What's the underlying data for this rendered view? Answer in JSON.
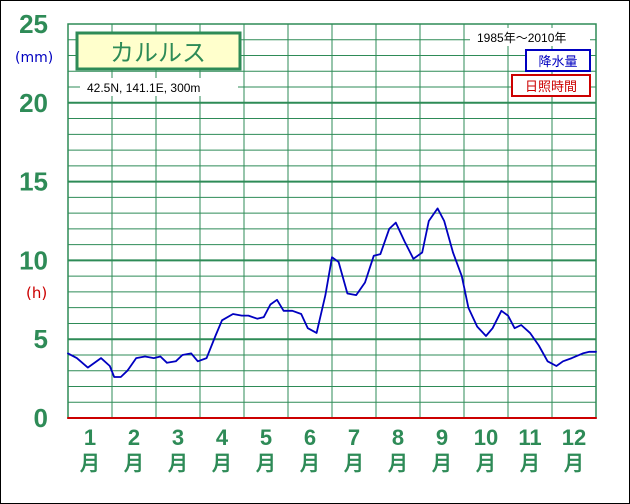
{
  "chart_data": {
    "type": "line",
    "station": "カルルス",
    "location": "42.5N,  141.1E,  300m",
    "period": "1985年〜2010年",
    "legend": [
      {
        "label": "降水量",
        "color": "#0000c0"
      },
      {
        "label": "日照時間",
        "color": "#cc0000"
      }
    ],
    "unit_precip": "(mm)",
    "unit_sun": "(h)",
    "y_ticks": [
      "0",
      "5",
      "10",
      "15",
      "20",
      "25"
    ],
    "ylim": [
      0,
      25
    ],
    "xlim": [
      1,
      13
    ],
    "months": [
      "1",
      "2",
      "3",
      "4",
      "5",
      "6",
      "7",
      "8",
      "9",
      "10",
      "11",
      "12"
    ],
    "month_suffix": "月",
    "grid": true,
    "series": [
      {
        "color": "#0000c0",
        "x": [
          1.0,
          1.2,
          1.45,
          1.75,
          1.95,
          2.05,
          2.2,
          2.35,
          2.55,
          2.75,
          2.95,
          3.1,
          3.25,
          3.45,
          3.6,
          3.8,
          3.95,
          4.15,
          4.35,
          4.5,
          4.75,
          4.95,
          5.1,
          5.3,
          5.45,
          5.6,
          5.75,
          5.9,
          6.1,
          6.3,
          6.45,
          6.65,
          6.85,
          7.0,
          7.15,
          7.35,
          7.55,
          7.75,
          7.95,
          8.1,
          8.3,
          8.45,
          8.65,
          8.85,
          9.05,
          9.2,
          9.4,
          9.55,
          9.75,
          9.95,
          10.1,
          10.3,
          10.5,
          10.65,
          10.85,
          11.0,
          11.15,
          11.3,
          11.5,
          11.7,
          11.9,
          12.1,
          12.25,
          12.45,
          12.7,
          12.85,
          13.0
        ],
        "values": [
          4.1,
          3.8,
          3.2,
          3.8,
          3.3,
          2.6,
          2.6,
          3.0,
          3.8,
          3.9,
          3.8,
          3.9,
          3.5,
          3.6,
          4.0,
          4.1,
          3.6,
          3.8,
          5.2,
          6.2,
          6.6,
          6.5,
          6.5,
          6.3,
          6.4,
          7.2,
          7.5,
          6.8,
          6.8,
          6.6,
          5.7,
          5.4,
          7.8,
          10.2,
          9.9,
          7.9,
          7.8,
          8.6,
          10.3,
          10.4,
          12.0,
          12.4,
          11.2,
          10.1,
          10.5,
          12.5,
          13.3,
          12.5,
          10.5,
          9.0,
          7.0,
          5.8,
          5.2,
          5.7,
          6.8,
          6.5,
          5.7,
          5.9,
          5.4,
          4.6,
          3.6,
          3.3,
          3.6,
          3.8,
          4.1,
          4.2,
          4.2
        ]
      },
      {
        "color": "#cc0000",
        "x": [
          1.0,
          13.0
        ],
        "values": [
          0,
          0
        ]
      }
    ]
  }
}
